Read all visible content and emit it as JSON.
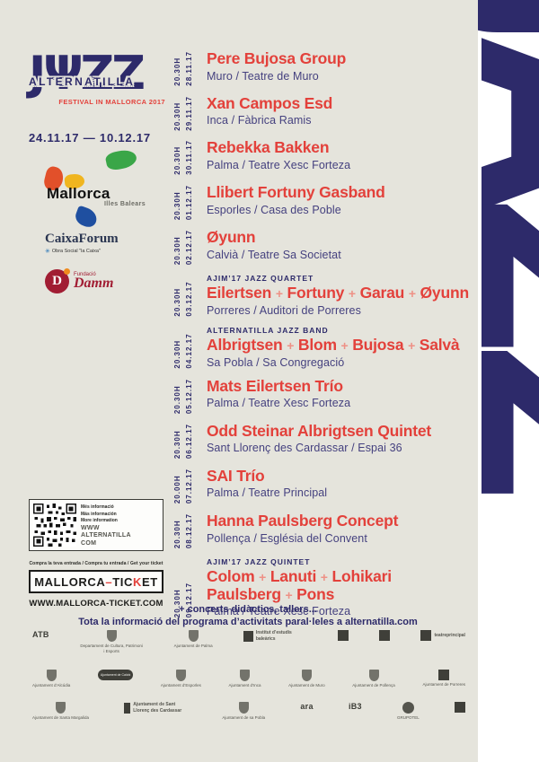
{
  "colors": {
    "background": "#e5e4dc",
    "navy": "#2d2a6a",
    "red": "#e3413b",
    "plus": "#ee9186",
    "venue": "#45417f",
    "band_bg": "#ffffff",
    "damm_red": "#a11d33"
  },
  "logo": {
    "jazz": "JΨZZ",
    "name": "ALTERNATILLA",
    "tagline": "FESTIVAL IN MALLORCA 2017",
    "dates": "24.11.17 — 10.12.17"
  },
  "partners": {
    "mallorca": {
      "title": "Mallorca",
      "subtitle": "Illes Balears"
    },
    "caixaforum": {
      "title": "CaixaForum",
      "subtitle": "Obra Social \"la Caixa\"",
      "star_icon": "✳"
    },
    "damm": {
      "small": "Fundació",
      "name": "Damm",
      "initial": "D"
    }
  },
  "info_box": {
    "lines": [
      "Més informació",
      "Más información",
      "More information"
    ],
    "web": [
      "WWW",
      "ALTERNATILLA",
      "COM"
    ]
  },
  "tickets": {
    "cta": "Compra la teva entrada / Compra tu entrada / Get your ticket",
    "brand_left": "MALLORCA",
    "brand_dash": "–",
    "brand_mid": "TIC",
    "brand_k": "K",
    "brand_right": "ET",
    "url": "WWW.MALLORCA-TICKET.COM"
  },
  "events": [
    {
      "time": "20.30H",
      "date": "28.11.17",
      "lines": [
        [
          "Pere Bujosa Group"
        ]
      ],
      "venue": "Muro / Teatre de Muro"
    },
    {
      "time": "20.30H",
      "date": "29.11.17",
      "lines": [
        [
          "Xan Campos Esd"
        ]
      ],
      "venue": "Inca / Fàbrica Ramis"
    },
    {
      "time": "20.30H",
      "date": "30.11.17",
      "lines": [
        [
          "Rebekka Bakken"
        ]
      ],
      "venue": "Palma / Teatre Xesc Forteza"
    },
    {
      "time": "20.30H",
      "date": "01.12.17",
      "lines": [
        [
          "Llibert Fortuny Gasband"
        ]
      ],
      "venue": "Esporles / Casa des Poble"
    },
    {
      "time": "20.30H",
      "date": "02.12.17",
      "lines": [
        [
          "Øyunn"
        ]
      ],
      "venue": "Calvià / Teatre Sa Societat"
    },
    {
      "time": "20.30H",
      "date": "03.12.17",
      "subtitle": "AJIM’17 JAZZ QUARTET",
      "lines": [
        [
          "Eilertsen",
          "Fortuny",
          "Garau",
          "Øyunn"
        ]
      ],
      "venue": "Porreres / Auditori de Porreres"
    },
    {
      "time": "20.30H",
      "date": "04.12.17",
      "subtitle": "ALTERNATILLA JAZZ BAND",
      "lines": [
        [
          "Albrigtsen",
          "Blom",
          "Bujosa",
          "Salvà"
        ]
      ],
      "venue": "Sa Pobla / Sa Congregació"
    },
    {
      "time": "20.30H",
      "date": "05.12.17",
      "lines": [
        [
          "Mats Eilertsen Trío"
        ]
      ],
      "venue": "Palma / Teatre Xesc Forteza"
    },
    {
      "time": "20.30H",
      "date": "06.12.17",
      "lines": [
        [
          "Odd Steinar Albrigtsen Quintet"
        ]
      ],
      "venue": "Sant Llorenç des Cardassar / Espai 36"
    },
    {
      "time": "20.00H",
      "date": "07.12.17",
      "lines": [
        [
          "SAI Trío"
        ]
      ],
      "venue": "Palma / Teatre Principal"
    },
    {
      "time": "20.30H",
      "date": "08.12.17",
      "lines": [
        [
          "Hanna Paulsberg Concept"
        ]
      ],
      "venue": "Pollença / Església del Convent"
    },
    {
      "time": "20.30H",
      "date": "09.12.17",
      "subtitle": "AJIM’17 JAZZ QUINTET",
      "lines": [
        [
          "Colom",
          "Lanuti",
          "Lohikari"
        ],
        [
          "Paulsberg",
          "Pons"
        ]
      ],
      "venue": "Palma / Teatre Xesc Forteza"
    }
  ],
  "footnote": {
    "line1": "+ concerts didàctics, tallers...",
    "line2": "Tota la informació del programa d’activitats paral·leles a alternatilla.com"
  },
  "sponsors": {
    "row1": [
      {
        "label": "ATB",
        "kind": "wordmark"
      },
      {
        "label": "Departament de Cultura, Patrimoni i Esports",
        "kind": "crest"
      },
      {
        "label": "Ajuntament de Palma",
        "kind": "crest"
      },
      {
        "label": "Institut d’estudis baleàrics",
        "kind": "boxword"
      },
      {
        "label": "",
        "kind": "box"
      },
      {
        "label": "",
        "kind": "box"
      },
      {
        "label": "teatreprincipal",
        "kind": "boxword"
      }
    ],
    "row2": [
      {
        "label": "Ajuntament d’Alcúdia",
        "kind": "crest"
      },
      {
        "label": "Ajuntament de Calvià",
        "kind": "pill"
      },
      {
        "label": "Ajuntament d’Esporles",
        "kind": "crest"
      },
      {
        "label": "Ajuntament d’Inca",
        "kind": "crest"
      },
      {
        "label": "Ajuntament de Muro",
        "kind": "crest"
      },
      {
        "label": "Ajuntament de Pollença",
        "kind": "crest"
      },
      {
        "label": "Ajuntament de Porreres",
        "kind": "box"
      }
    ],
    "row3": [
      {
        "label": "Ajuntament de Santa Margalida",
        "kind": "crest"
      },
      {
        "label": "Ajuntament de Sant Llorenç des Cardassar",
        "kind": "boxword"
      },
      {
        "label": "Ajuntament de sa Pobla",
        "kind": "crest"
      },
      {
        "label": "ara",
        "kind": "wordmark"
      },
      {
        "label": "iB3",
        "kind": "wordmark"
      },
      {
        "label": "GRUPOTEL",
        "kind": "circle"
      },
      {
        "label": "",
        "kind": "box"
      }
    ]
  },
  "right_banner": {
    "text": "JAZZ"
  }
}
